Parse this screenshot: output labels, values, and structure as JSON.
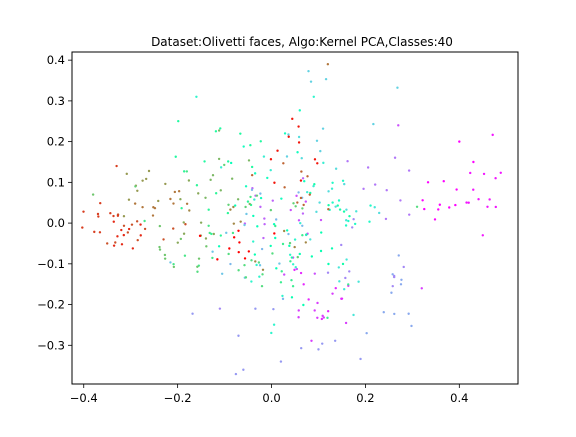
{
  "chart_data": {
    "type": "scatter",
    "title": "Dataset:Olivetti faces, Algo:Kernel PCA,Classes:40",
    "xlabel": "",
    "ylabel": "",
    "xlim": [
      -0.425,
      0.525
    ],
    "ylim": [
      -0.395,
      0.42
    ],
    "xticks": [
      -0.4,
      -0.2,
      0.0,
      0.2,
      0.4
    ],
    "xtick_labels": [
      "−0.4",
      "−0.2",
      "0.0",
      "0.2",
      "0.4"
    ],
    "yticks": [
      -0.3,
      -0.2,
      -0.1,
      0.0,
      0.1,
      0.2,
      0.3,
      0.4
    ],
    "ytick_labels": [
      "−0.3",
      "−0.2",
      "−0.1",
      "0.0",
      "0.1",
      "0.2",
      "0.3",
      "0.4"
    ],
    "grid": false,
    "legend": "none",
    "colormap": "rainbow",
    "num_classes": 40,
    "marker_size": 1.2,
    "points_per_class": 10,
    "class_centers": [
      [
        0.36,
        0.05
      ],
      [
        0.44,
        0.1
      ],
      [
        0.12,
        -0.18
      ],
      [
        0.1,
        -0.22
      ],
      [
        0.04,
        -0.05
      ],
      [
        -0.02,
        0.05
      ],
      [
        0.25,
        0.08
      ],
      [
        0.2,
        -0.1
      ],
      [
        0.02,
        -0.28
      ],
      [
        0.28,
        -0.15
      ],
      [
        0.0,
        -0.02
      ],
      [
        -0.06,
        -0.05
      ],
      [
        0.08,
        0.25
      ],
      [
        0.1,
        0.1
      ],
      [
        0.15,
        -0.08
      ],
      [
        0.05,
        0.05
      ],
      [
        -0.02,
        -0.12
      ],
      [
        0.18,
        0.05
      ],
      [
        0.0,
        0.15
      ],
      [
        -0.05,
        0.0
      ],
      [
        0.06,
        -0.1
      ],
      [
        0.12,
        0.02
      ],
      [
        -0.1,
        0.2
      ],
      [
        -0.12,
        0.05
      ],
      [
        0.06,
        -0.14
      ],
      [
        -0.15,
        -0.02
      ],
      [
        -0.08,
        -0.12
      ],
      [
        0.02,
        0.02
      ],
      [
        -0.2,
        -0.05
      ],
      [
        -0.12,
        0.1
      ],
      [
        -0.18,
        0.0
      ],
      [
        -0.28,
        0.08
      ],
      [
        -0.05,
        -0.05
      ],
      [
        -0.22,
        0.05
      ],
      [
        0.04,
        0.08
      ],
      [
        -0.3,
        -0.02
      ],
      [
        -0.36,
        0.02
      ],
      [
        -0.32,
        -0.03
      ],
      [
        0.05,
        0.18
      ],
      [
        -0.07,
        -0.06
      ]
    ],
    "class_spreads": [
      [
        0.04,
        0.05
      ],
      [
        0.025,
        0.06
      ],
      [
        0.06,
        0.05
      ],
      [
        0.05,
        0.06
      ],
      [
        0.07,
        0.08
      ],
      [
        0.07,
        0.08
      ],
      [
        0.07,
        0.07
      ],
      [
        0.08,
        0.07
      ],
      [
        0.09,
        0.08
      ],
      [
        0.05,
        0.07
      ],
      [
        0.07,
        0.08
      ],
      [
        0.08,
        0.07
      ],
      [
        0.08,
        0.08
      ],
      [
        0.07,
        0.08
      ],
      [
        0.07,
        0.08
      ],
      [
        0.08,
        0.08
      ],
      [
        0.07,
        0.08
      ],
      [
        0.06,
        0.07
      ],
      [
        0.07,
        0.08
      ],
      [
        0.07,
        0.08
      ],
      [
        0.07,
        0.08
      ],
      [
        0.07,
        0.08
      ],
      [
        0.06,
        0.06
      ],
      [
        0.06,
        0.08
      ],
      [
        0.06,
        0.06
      ],
      [
        0.06,
        0.07
      ],
      [
        0.06,
        0.06
      ],
      [
        0.07,
        0.08
      ],
      [
        0.05,
        0.06
      ],
      [
        0.06,
        0.06
      ],
      [
        0.05,
        0.05
      ],
      [
        0.04,
        0.04
      ],
      [
        0.06,
        0.06
      ],
      [
        0.05,
        0.05
      ],
      [
        0.06,
        0.06
      ],
      [
        0.05,
        0.04
      ],
      [
        0.04,
        0.04
      ],
      [
        0.03,
        0.02
      ],
      [
        0.06,
        0.06
      ],
      [
        0.06,
        0.06
      ]
    ],
    "extra_points": [
      [
        0.12,
        0.39,
        33
      ],
      [
        0.46,
        0.04,
        1
      ],
      [
        0.45,
        -0.03,
        1
      ],
      [
        0.43,
        0.15,
        0
      ],
      [
        0.4,
        0.2,
        0
      ],
      [
        0.42,
        0.05,
        1
      ],
      [
        0.27,
        0.24,
        4
      ],
      [
        0.32,
        -0.16,
        3
      ],
      [
        -0.06,
        -0.36,
        8
      ],
      [
        0.02,
        -0.34,
        8
      ],
      [
        0.1,
        -0.31,
        8
      ],
      [
        -0.11,
        -0.21,
        7
      ],
      [
        -0.16,
        0.31,
        16
      ],
      [
        0.09,
        0.31,
        16
      ],
      [
        0.31,
        0.04,
        26
      ],
      [
        -0.29,
        0.09,
        27
      ],
      [
        -0.38,
        0.07,
        28
      ],
      [
        -0.23,
        -0.04,
        35
      ],
      [
        -0.35,
        -0.05,
        35
      ],
      [
        -0.33,
        0.14,
        36
      ]
    ]
  }
}
